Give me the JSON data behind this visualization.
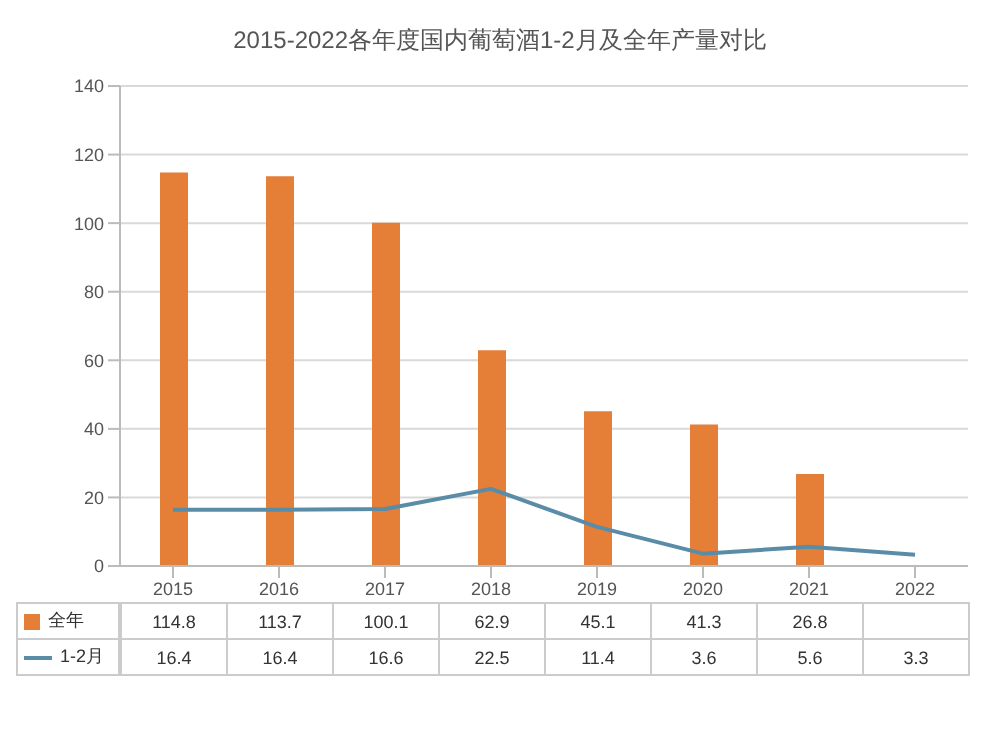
{
  "chart_data": {
    "type": "bar",
    "title": "2015-2022各年度国内葡萄酒1-2月及全年产量对比",
    "categories": [
      "2015",
      "2016",
      "2017",
      "2018",
      "2019",
      "2020",
      "2021",
      "2022"
    ],
    "series": [
      {
        "name": "全年",
        "color": "#e57e36",
        "values": [
          114.8,
          113.7,
          100.1,
          62.9,
          45.1,
          41.3,
          26.8,
          null
        ]
      },
      {
        "name": "1-2月",
        "type": "line",
        "color": "#5a8ca8",
        "values": [
          16.4,
          16.4,
          16.6,
          22.5,
          11.4,
          3.6,
          5.6,
          3.3
        ]
      }
    ],
    "ylim": [
      0,
      140
    ],
    "yticks": [
      0,
      20,
      40,
      60,
      80,
      100,
      120,
      140
    ],
    "grid": "y",
    "legend": "bottom",
    "data_labels": true
  }
}
